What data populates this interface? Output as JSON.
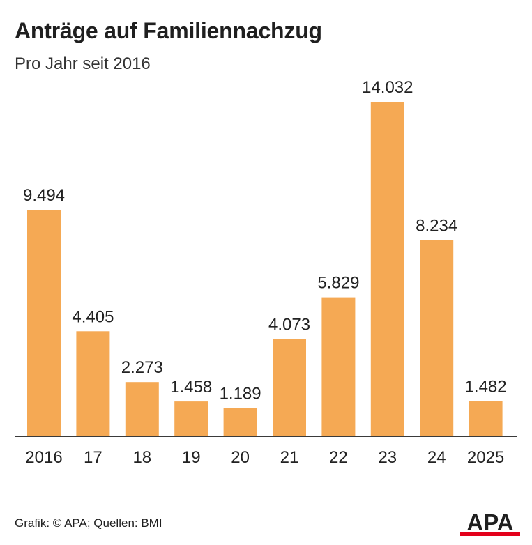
{
  "header": {
    "title": "Anträge auf Familiennachzug",
    "subtitle": "Pro Jahr seit 2016"
  },
  "footer": {
    "credit": "Grafik: © APA; Quellen: BMI",
    "logo_text": "APA"
  },
  "colors": {
    "bar": "#f5a954",
    "axis": "#3a3a3a",
    "text": "#222222",
    "logo_red": "#e3001b"
  },
  "chart_data": {
    "type": "bar",
    "title": "Anträge auf Familiennachzug",
    "subtitle": "Pro Jahr seit 2016",
    "categories": [
      "2016",
      "17",
      "18",
      "19",
      "20",
      "21",
      "22",
      "23",
      "24",
      "2025"
    ],
    "values": [
      9494,
      4405,
      2273,
      1458,
      1189,
      4073,
      5829,
      14032,
      8234,
      1482
    ],
    "value_labels": [
      "9.494",
      "4.405",
      "2.273",
      "1.458",
      "1.189",
      "4.073",
      "5.829",
      "14.032",
      "8.234",
      "1.482"
    ],
    "xlabel": "",
    "ylabel": "",
    "ylim": [
      0,
      14032
    ],
    "grid": false,
    "legend": "none"
  }
}
